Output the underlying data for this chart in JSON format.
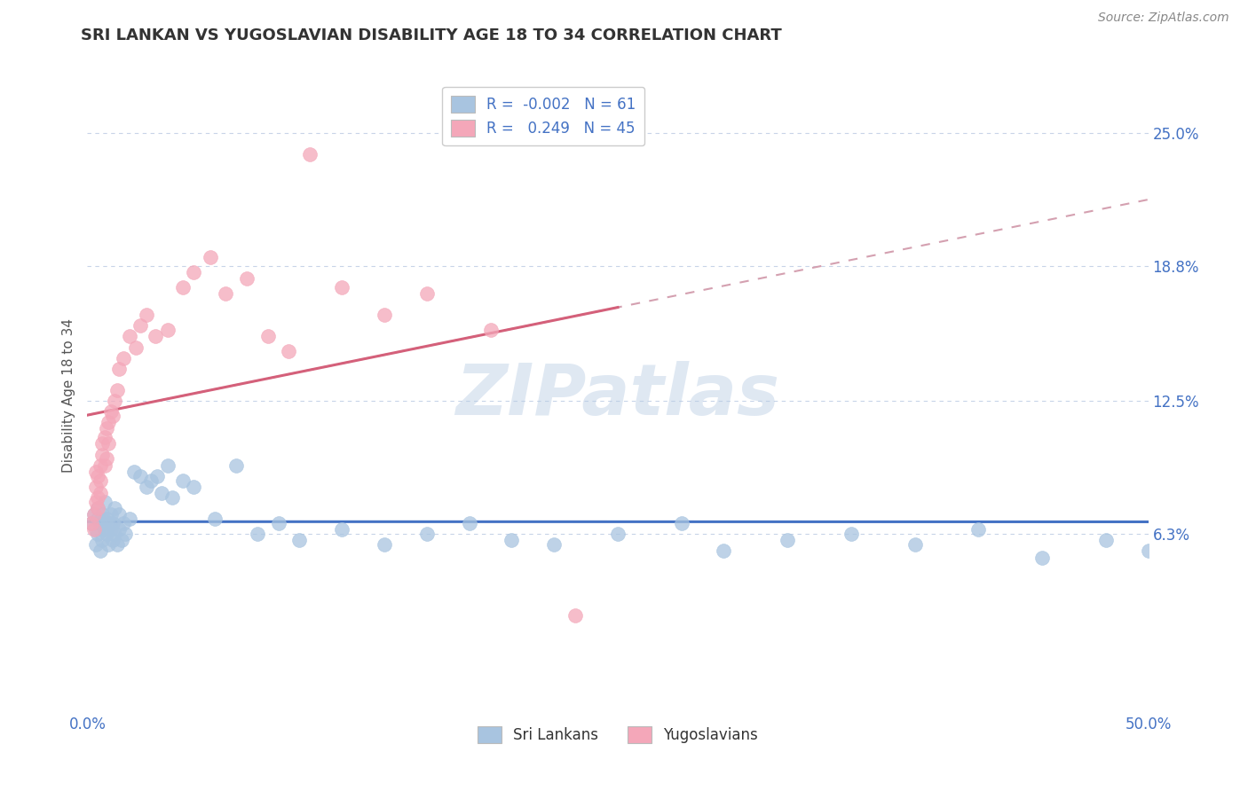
{
  "title": "SRI LANKAN VS YUGOSLAVIAN DISABILITY AGE 18 TO 34 CORRELATION CHART",
  "source": "Source: ZipAtlas.com",
  "ylabel": "Disability Age 18 to 34",
  "y_ticks": [
    0.063,
    0.125,
    0.188,
    0.25
  ],
  "y_tick_labels": [
    "6.3%",
    "12.5%",
    "18.8%",
    "25.0%"
  ],
  "x_lim": [
    0.0,
    0.5
  ],
  "y_lim": [
    -0.02,
    0.275
  ],
  "sri_lankans_R": -0.002,
  "sri_lankans_N": 61,
  "yugoslavians_R": 0.249,
  "yugoslavians_N": 45,
  "sri_lankans_color": "#a8c4e0",
  "yugoslavians_color": "#f4a7b9",
  "sri_lankans_line_color": "#4472c4",
  "yugoslavians_line_color": "#d4607a",
  "trend_dashed_color": "#d4a0b0",
  "background_color": "#ffffff",
  "grid_color": "#c8d4e8",
  "watermark": "ZIPatlas",
  "sri_lankans_x": [
    0.002,
    0.003,
    0.004,
    0.004,
    0.005,
    0.005,
    0.005,
    0.006,
    0.006,
    0.007,
    0.007,
    0.008,
    0.008,
    0.009,
    0.009,
    0.01,
    0.01,
    0.011,
    0.011,
    0.012,
    0.012,
    0.013,
    0.013,
    0.014,
    0.015,
    0.015,
    0.016,
    0.017,
    0.018,
    0.02,
    0.022,
    0.025,
    0.028,
    0.03,
    0.033,
    0.035,
    0.038,
    0.04,
    0.045,
    0.05,
    0.06,
    0.07,
    0.08,
    0.09,
    0.1,
    0.12,
    0.14,
    0.16,
    0.18,
    0.2,
    0.22,
    0.25,
    0.28,
    0.3,
    0.33,
    0.36,
    0.39,
    0.42,
    0.45,
    0.48,
    0.5
  ],
  "sri_lankans_y": [
    0.068,
    0.072,
    0.065,
    0.058,
    0.075,
    0.063,
    0.07,
    0.068,
    0.055,
    0.072,
    0.06,
    0.065,
    0.078,
    0.063,
    0.07,
    0.068,
    0.058,
    0.065,
    0.072,
    0.06,
    0.068,
    0.063,
    0.075,
    0.058,
    0.065,
    0.072,
    0.06,
    0.068,
    0.063,
    0.07,
    0.092,
    0.09,
    0.085,
    0.088,
    0.09,
    0.082,
    0.095,
    0.08,
    0.088,
    0.085,
    0.07,
    0.095,
    0.063,
    0.068,
    0.06,
    0.065,
    0.058,
    0.063,
    0.068,
    0.06,
    0.058,
    0.063,
    0.068,
    0.055,
    0.06,
    0.063,
    0.058,
    0.065,
    0.052,
    0.06,
    0.055
  ],
  "yugoslavians_x": [
    0.002,
    0.003,
    0.003,
    0.004,
    0.004,
    0.004,
    0.005,
    0.005,
    0.005,
    0.006,
    0.006,
    0.006,
    0.007,
    0.007,
    0.008,
    0.008,
    0.009,
    0.009,
    0.01,
    0.01,
    0.011,
    0.012,
    0.013,
    0.014,
    0.015,
    0.017,
    0.02,
    0.023,
    0.025,
    0.028,
    0.032,
    0.038,
    0.045,
    0.05,
    0.058,
    0.065,
    0.075,
    0.085,
    0.095,
    0.105,
    0.12,
    0.14,
    0.16,
    0.19,
    0.23
  ],
  "yugoslavians_y": [
    0.068,
    0.072,
    0.065,
    0.085,
    0.092,
    0.078,
    0.08,
    0.075,
    0.09,
    0.095,
    0.088,
    0.082,
    0.1,
    0.105,
    0.108,
    0.095,
    0.112,
    0.098,
    0.115,
    0.105,
    0.12,
    0.118,
    0.125,
    0.13,
    0.14,
    0.145,
    0.155,
    0.15,
    0.16,
    0.165,
    0.155,
    0.158,
    0.178,
    0.185,
    0.192,
    0.175,
    0.182,
    0.155,
    0.148,
    0.24,
    0.178,
    0.165,
    0.175,
    0.158,
    0.025
  ]
}
